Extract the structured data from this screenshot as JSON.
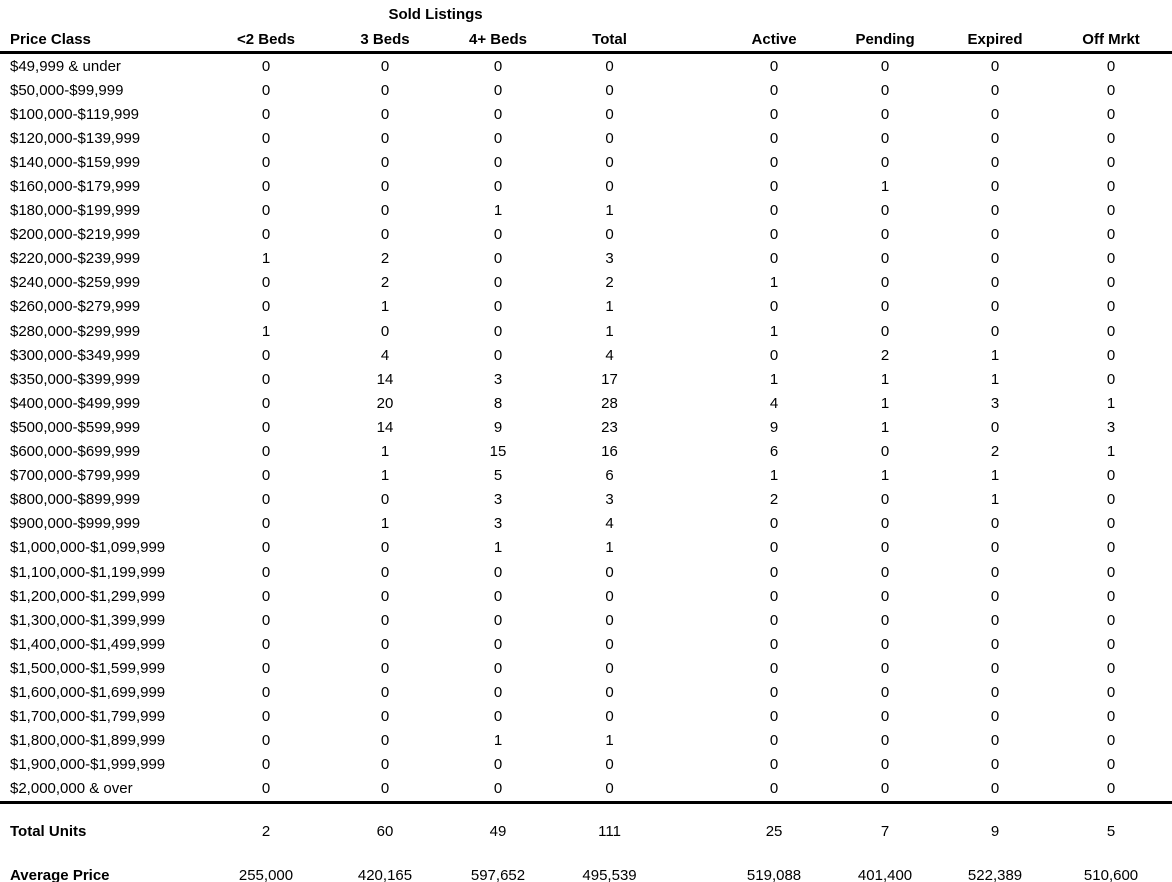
{
  "title": "Sold Listings",
  "table": {
    "columns": [
      "Price Class",
      "<2 Beds",
      "3 Beds",
      "4+ Beds",
      "Total",
      "Active",
      "Pending",
      "Expired",
      "Off Mrkt"
    ],
    "rows": [
      {
        "price_class": "$49,999 & under",
        "values": [
          "0",
          "0",
          "0",
          "0",
          "0",
          "0",
          "0",
          "0"
        ]
      },
      {
        "price_class": "$50,000-$99,999",
        "values": [
          "0",
          "0",
          "0",
          "0",
          "0",
          "0",
          "0",
          "0"
        ]
      },
      {
        "price_class": "$100,000-$119,999",
        "values": [
          "0",
          "0",
          "0",
          "0",
          "0",
          "0",
          "0",
          "0"
        ]
      },
      {
        "price_class": "$120,000-$139,999",
        "values": [
          "0",
          "0",
          "0",
          "0",
          "0",
          "0",
          "0",
          "0"
        ]
      },
      {
        "price_class": "$140,000-$159,999",
        "values": [
          "0",
          "0",
          "0",
          "0",
          "0",
          "0",
          "0",
          "0"
        ]
      },
      {
        "price_class": "$160,000-$179,999",
        "values": [
          "0",
          "0",
          "0",
          "0",
          "0",
          "1",
          "0",
          "0"
        ]
      },
      {
        "price_class": "$180,000-$199,999",
        "values": [
          "0",
          "0",
          "1",
          "1",
          "0",
          "0",
          "0",
          "0"
        ]
      },
      {
        "price_class": "$200,000-$219,999",
        "values": [
          "0",
          "0",
          "0",
          "0",
          "0",
          "0",
          "0",
          "0"
        ]
      },
      {
        "price_class": "$220,000-$239,999",
        "values": [
          "1",
          "2",
          "0",
          "3",
          "0",
          "0",
          "0",
          "0"
        ]
      },
      {
        "price_class": "$240,000-$259,999",
        "values": [
          "0",
          "2",
          "0",
          "2",
          "1",
          "0",
          "0",
          "0"
        ]
      },
      {
        "price_class": "$260,000-$279,999",
        "values": [
          "0",
          "1",
          "0",
          "1",
          "0",
          "0",
          "0",
          "0"
        ]
      },
      {
        "price_class": "$280,000-$299,999",
        "values": [
          "1",
          "0",
          "0",
          "1",
          "1",
          "0",
          "0",
          "0"
        ]
      },
      {
        "price_class": "$300,000-$349,999",
        "values": [
          "0",
          "4",
          "0",
          "4",
          "0",
          "2",
          "1",
          "0"
        ]
      },
      {
        "price_class": "$350,000-$399,999",
        "values": [
          "0",
          "14",
          "3",
          "17",
          "1",
          "1",
          "1",
          "0"
        ]
      },
      {
        "price_class": "$400,000-$499,999",
        "values": [
          "0",
          "20",
          "8",
          "28",
          "4",
          "1",
          "3",
          "1"
        ]
      },
      {
        "price_class": "$500,000-$599,999",
        "values": [
          "0",
          "14",
          "9",
          "23",
          "9",
          "1",
          "0",
          "3"
        ]
      },
      {
        "price_class": "$600,000-$699,999",
        "values": [
          "0",
          "1",
          "15",
          "16",
          "6",
          "0",
          "2",
          "1"
        ]
      },
      {
        "price_class": "$700,000-$799,999",
        "values": [
          "0",
          "1",
          "5",
          "6",
          "1",
          "1",
          "1",
          "0"
        ]
      },
      {
        "price_class": "$800,000-$899,999",
        "values": [
          "0",
          "0",
          "3",
          "3",
          "2",
          "0",
          "1",
          "0"
        ]
      },
      {
        "price_class": "$900,000-$999,999",
        "values": [
          "0",
          "1",
          "3",
          "4",
          "0",
          "0",
          "0",
          "0"
        ]
      },
      {
        "price_class": "$1,000,000-$1,099,999",
        "values": [
          "0",
          "0",
          "1",
          "1",
          "0",
          "0",
          "0",
          "0"
        ]
      },
      {
        "price_class": "$1,100,000-$1,199,999",
        "values": [
          "0",
          "0",
          "0",
          "0",
          "0",
          "0",
          "0",
          "0"
        ]
      },
      {
        "price_class": "$1,200,000-$1,299,999",
        "values": [
          "0",
          "0",
          "0",
          "0",
          "0",
          "0",
          "0",
          "0"
        ]
      },
      {
        "price_class": "$1,300,000-$1,399,999",
        "values": [
          "0",
          "0",
          "0",
          "0",
          "0",
          "0",
          "0",
          "0"
        ]
      },
      {
        "price_class": "$1,400,000-$1,499,999",
        "values": [
          "0",
          "0",
          "0",
          "0",
          "0",
          "0",
          "0",
          "0"
        ]
      },
      {
        "price_class": "$1,500,000-$1,599,999",
        "values": [
          "0",
          "0",
          "0",
          "0",
          "0",
          "0",
          "0",
          "0"
        ]
      },
      {
        "price_class": "$1,600,000-$1,699,999",
        "values": [
          "0",
          "0",
          "0",
          "0",
          "0",
          "0",
          "0",
          "0"
        ]
      },
      {
        "price_class": "$1,700,000-$1,799,999",
        "values": [
          "0",
          "0",
          "0",
          "0",
          "0",
          "0",
          "0",
          "0"
        ]
      },
      {
        "price_class": "$1,800,000-$1,899,999",
        "values": [
          "0",
          "0",
          "1",
          "1",
          "0",
          "0",
          "0",
          "0"
        ]
      },
      {
        "price_class": "$1,900,000-$1,999,999",
        "values": [
          "0",
          "0",
          "0",
          "0",
          "0",
          "0",
          "0",
          "0"
        ]
      },
      {
        "price_class": "$2,000,000 & over",
        "values": [
          "0",
          "0",
          "0",
          "0",
          "0",
          "0",
          "0",
          "0"
        ]
      }
    ],
    "total_units": {
      "label": "Total Units",
      "values": [
        "2",
        "60",
        "49",
        "111",
        "25",
        "7",
        "9",
        "5"
      ]
    },
    "average_price": {
      "label": "Average Price",
      "values": [
        "255,000",
        "420,165",
        "597,652",
        "495,539",
        "519,088",
        "401,400",
        "522,389",
        "510,600"
      ]
    }
  },
  "colors": {
    "text": "#000000",
    "background": "#ffffff",
    "rule": "#000000"
  }
}
